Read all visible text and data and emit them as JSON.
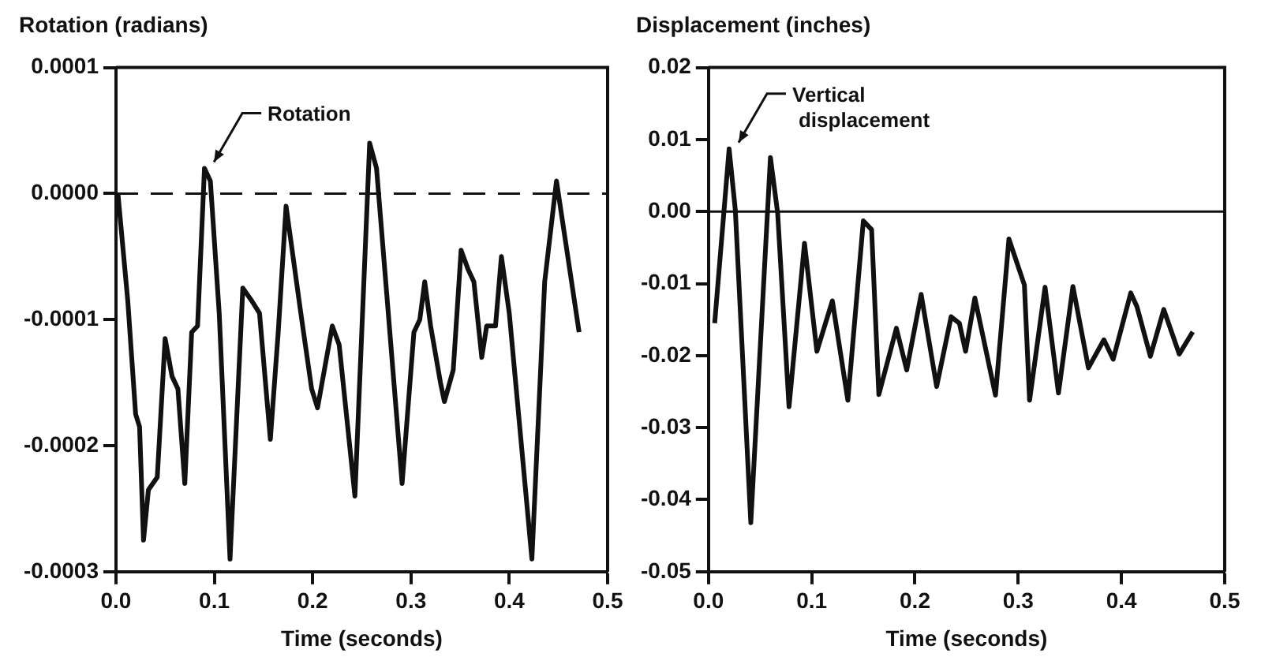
{
  "chart_data": [
    {
      "type": "line",
      "ylabel": "Rotation (radians)",
      "xlabel": "Time (seconds)",
      "annotations": [
        {
          "text": "Rotation",
          "x": 0.09,
          "y": 2e-05
        }
      ],
      "x": [
        0.002,
        0.012,
        0.02,
        0.024,
        0.028,
        0.033,
        0.042,
        0.05,
        0.057,
        0.063,
        0.07,
        0.077,
        0.083,
        0.09,
        0.096,
        0.105,
        0.116,
        0.129,
        0.138,
        0.146,
        0.157,
        0.165,
        0.173,
        0.188,
        0.199,
        0.205,
        0.22,
        0.227,
        0.243,
        0.258,
        0.265,
        0.291,
        0.303,
        0.309,
        0.314,
        0.32,
        0.33,
        0.334,
        0.343,
        0.351,
        0.358,
        0.364,
        0.372,
        0.377,
        0.386,
        0.392,
        0.4,
        0.423,
        0.436,
        0.448,
        0.471
      ],
      "series": [
        {
          "color": "#111111",
          "values": [
            0,
            -8.5e-05,
            -0.000175,
            -0.000185,
            -0.000275,
            -0.000235,
            -0.000225,
            -0.000115,
            -0.000145,
            -0.000155,
            -0.00023,
            -0.00011,
            -0.000105,
            2e-05,
            1e-05,
            -9.5e-05,
            -0.00029,
            -7.5e-05,
            -8.5e-05,
            -9.5e-05,
            -0.000195,
            -0.00011,
            -1e-05,
            -9.5e-05,
            -0.000155,
            -0.00017,
            -0.000105,
            -0.00012,
            -0.00024,
            4e-05,
            2e-05,
            -0.00023,
            -0.00011,
            -0.0001,
            -7e-05,
            -0.000105,
            -0.00015,
            -0.000165,
            -0.00014,
            -4.5e-05,
            -6e-05,
            -7e-05,
            -0.00013,
            -0.000105,
            -0.000105,
            -5e-05,
            -9.5e-05,
            -0.00029,
            -7e-05,
            1e-05,
            -0.00011
          ]
        }
      ],
      "ref_lines": [
        {
          "axis": "y",
          "value": 0,
          "line_style": "dashed",
          "color": "#111111"
        }
      ],
      "xlim": [
        0,
        0.5
      ],
      "xticks": [
        {
          "value": 0,
          "label": "0.0"
        },
        0.1,
        0.2,
        0.3,
        0.4,
        0.5
      ],
      "ylim": [
        -0.0003,
        0.0001
      ],
      "yticks": [
        -0.0003,
        -0.0002,
        -0.0001,
        {
          "value": 0,
          "label": "0.0000"
        },
        0.0001
      ],
      "grid": false,
      "legend": false,
      "marker": "none",
      "line_style": "solid"
    },
    {
      "type": "line",
      "ylabel": "Displacement (inches)",
      "xlabel": "Time (seconds)",
      "annotations": [
        {
          "text": "Vertical displacement",
          "x": 0.02,
          "y": 0.0087
        }
      ],
      "x": [
        0.006,
        0.02,
        0.026,
        0.041,
        0.06,
        0.067,
        0.078,
        0.093,
        0.105,
        0.12,
        0.135,
        0.15,
        0.158,
        0.165,
        0.182,
        0.192,
        0.206,
        0.221,
        0.235,
        0.243,
        0.249,
        0.258,
        0.278,
        0.291,
        0.306,
        0.311,
        0.326,
        0.339,
        0.353,
        0.368,
        0.383,
        0.392,
        0.409,
        0.415,
        0.428,
        0.441,
        0.456,
        0.469
      ],
      "series": [
        {
          "color": "#111111",
          "values": [
            -0.0155,
            0.0087,
            0.0002,
            -0.0432,
            0.0075,
            -0.0002,
            -0.0271,
            -0.0044,
            -0.0194,
            -0.0124,
            -0.0262,
            -0.0013,
            -0.0025,
            -0.0254,
            -0.0162,
            -0.022,
            -0.0115,
            -0.0243,
            -0.0146,
            -0.0155,
            -0.0194,
            -0.012,
            -0.0255,
            -0.0038,
            -0.0102,
            -0.0262,
            -0.0105,
            -0.0252,
            -0.0104,
            -0.0217,
            -0.0178,
            -0.0205,
            -0.0113,
            -0.0132,
            -0.0201,
            -0.0136,
            -0.0198,
            -0.0167
          ]
        }
      ],
      "ref_lines": [
        {
          "axis": "y",
          "value": 0,
          "line_style": "solid",
          "color": "#111111"
        }
      ],
      "xlim": [
        0,
        0.5
      ],
      "xticks": [
        {
          "value": 0,
          "label": "0.0"
        },
        0.1,
        0.2,
        0.3,
        0.4,
        0.5
      ],
      "ylim": [
        -0.05,
        0.02
      ],
      "yticks": [
        -0.05,
        -0.04,
        -0.03,
        -0.02,
        -0.01,
        {
          "value": 0,
          "label": "0.00"
        },
        0.01,
        0.02
      ],
      "grid": false,
      "legend": false,
      "marker": "none",
      "line_style": "solid"
    }
  ]
}
